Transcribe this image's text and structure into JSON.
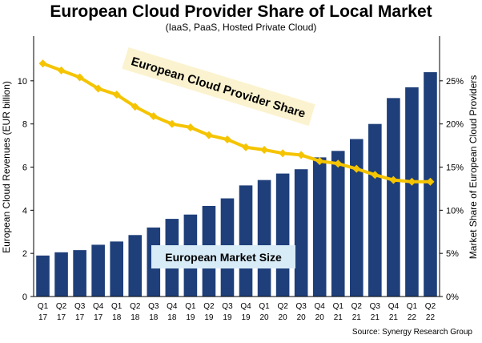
{
  "chart_data": {
    "type": "bar",
    "title": "European Cloud Provider Share of Local Market",
    "subtitle": "(IaaS, PaaS, Hosted Private Cloud)",
    "source": "Source: Synergy Research Group",
    "categories": [
      [
        "Q1",
        "17"
      ],
      [
        "Q2",
        "17"
      ],
      [
        "Q3",
        "17"
      ],
      [
        "Q4",
        "17"
      ],
      [
        "Q1",
        "18"
      ],
      [
        "Q2",
        "18"
      ],
      [
        "Q3",
        "18"
      ],
      [
        "Q4",
        "18"
      ],
      [
        "Q1",
        "19"
      ],
      [
        "Q2",
        "19"
      ],
      [
        "Q3",
        "19"
      ],
      [
        "Q4",
        "19"
      ],
      [
        "Q1",
        "20"
      ],
      [
        "Q2",
        "20"
      ],
      [
        "Q3",
        "20"
      ],
      [
        "Q4",
        "20"
      ],
      [
        "Q1",
        "21"
      ],
      [
        "Q2",
        "21"
      ],
      [
        "Q3",
        "21"
      ],
      [
        "Q4",
        "21"
      ],
      [
        "Q1",
        "22"
      ],
      [
        "Q2",
        "22"
      ]
    ],
    "ylabel": "European Cloud Revenues (EUR billion)",
    "ylim": [
      0,
      12
    ],
    "yticks": [
      0,
      2,
      4,
      6,
      8,
      10
    ],
    "y2label": "Market Share of European Cloud Providers",
    "y2lim": [
      0,
      0.3
    ],
    "y2ticks": [
      {
        "value": 0,
        "label": "0%"
      },
      {
        "value": 0.05,
        "label": "5%"
      },
      {
        "value": 0.1,
        "label": "10%"
      },
      {
        "value": 0.15,
        "label": "15%"
      },
      {
        "value": 0.2,
        "label": "20%"
      },
      {
        "value": 0.25,
        "label": "25%"
      }
    ],
    "grid": false,
    "series": [
      {
        "name": "European Market Size",
        "type": "bar",
        "axis": "left",
        "color": "#1f3f7a",
        "values": [
          1.9,
          2.05,
          2.15,
          2.4,
          2.55,
          2.85,
          3.2,
          3.6,
          3.8,
          4.2,
          4.55,
          5.15,
          5.4,
          5.7,
          5.9,
          6.45,
          6.75,
          7.3,
          8.0,
          9.2,
          9.7,
          10.4
        ]
      },
      {
        "name": "European Cloud Provider Share",
        "type": "line",
        "axis": "right",
        "color": "#f5c400",
        "values": [
          0.27,
          0.262,
          0.254,
          0.241,
          0.234,
          0.22,
          0.209,
          0.2,
          0.196,
          0.187,
          0.182,
          0.173,
          0.17,
          0.166,
          0.164,
          0.157,
          0.154,
          0.148,
          0.141,
          0.135,
          0.133,
          0.133
        ]
      }
    ],
    "annotation_colors": {
      "share_label_bg": "#fbf3cf",
      "size_label_bg": "#d8ecf8",
      "marker": "#f5c400",
      "axis": "#000000"
    }
  }
}
